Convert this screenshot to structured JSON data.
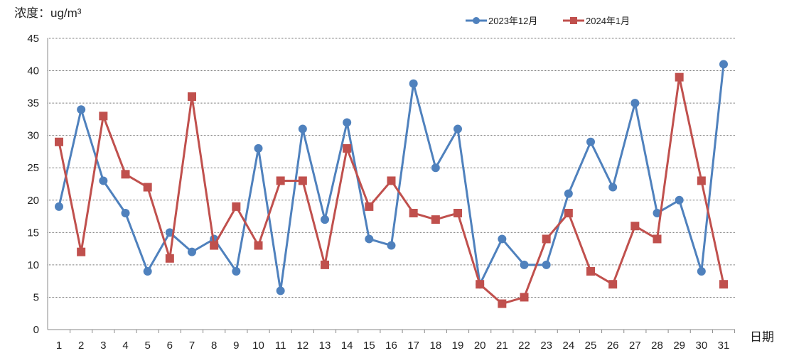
{
  "chart_data": {
    "type": "line",
    "title": "",
    "ylabel": "浓度：ug/m³",
    "xlabel": "日期",
    "ylim": [
      0,
      45
    ],
    "yticks": [
      0,
      5,
      10,
      15,
      20,
      25,
      30,
      35,
      40,
      45
    ],
    "grid": true,
    "legend_position": "top-right",
    "x": [
      1,
      2,
      3,
      4,
      5,
      6,
      7,
      8,
      9,
      10,
      11,
      12,
      13,
      14,
      15,
      16,
      17,
      18,
      19,
      20,
      21,
      22,
      23,
      24,
      25,
      26,
      27,
      28,
      29,
      30,
      31
    ],
    "series": [
      {
        "name": "2023年12月",
        "color": "#4F81BD",
        "marker": "circle",
        "values": [
          19,
          34,
          23,
          18,
          9,
          15,
          12,
          14,
          9,
          28,
          6,
          31,
          17,
          32,
          14,
          13,
          38,
          25,
          31,
          7,
          14,
          10,
          10,
          21,
          29,
          22,
          35,
          18,
          20,
          9,
          41
        ]
      },
      {
        "name": "2024年1月",
        "color": "#C0504D",
        "marker": "square",
        "values": [
          29,
          12,
          33,
          24,
          22,
          11,
          36,
          13,
          19,
          13,
          23,
          23,
          10,
          28,
          19,
          23,
          18,
          17,
          18,
          7,
          4,
          5,
          14,
          18,
          9,
          7,
          16,
          14,
          39,
          23,
          7
        ]
      }
    ]
  }
}
